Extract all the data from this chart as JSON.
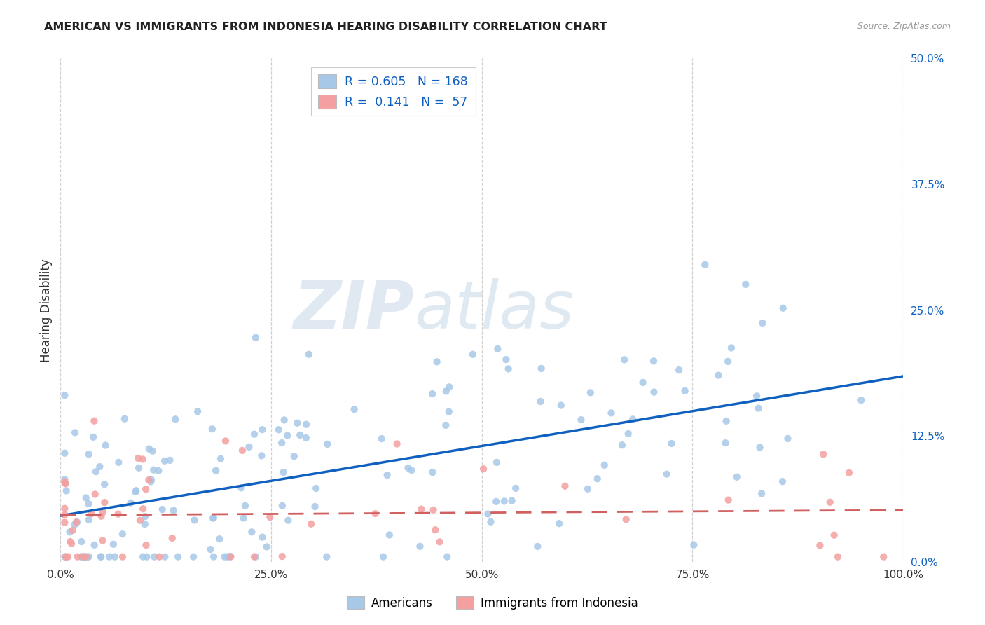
{
  "title": "AMERICAN VS IMMIGRANTS FROM INDONESIA HEARING DISABILITY CORRELATION CHART",
  "source": "Source: ZipAtlas.com",
  "xlabel_tick_vals": [
    0.0,
    0.25,
    0.5,
    0.75,
    1.0
  ],
  "xlabel_tick_labels": [
    "0.0%",
    "25.0%",
    "50.0%",
    "75.0%",
    "100.0%"
  ],
  "ylabel": "Hearing Disability",
  "ylabel_tick_vals": [
    0.0,
    0.125,
    0.25,
    0.375,
    0.5
  ],
  "ylabel_tick_labels": [
    "0.0%",
    "12.5%",
    "25.0%",
    "37.5%",
    "50.0%"
  ],
  "xlim": [
    0.0,
    1.0
  ],
  "ylim": [
    0.0,
    0.5
  ],
  "americans_color": "#a8c8e8",
  "immigrants_color": "#f4a0a0",
  "trendline_americans_color": "#1060c0",
  "trendline_immigrants_color": "#d06060",
  "R_americans": 0.605,
  "N_americans": 168,
  "R_immigrants": 0.141,
  "N_immigrants": 57,
  "legend_label_americans": "Americans",
  "legend_label_immigrants": "Immigrants from Indonesia",
  "watermark_zip": "ZIP",
  "watermark_atlas": "atlas",
  "background_color": "#ffffff",
  "grid_color": "#d0d0d0",
  "legend_text_color": "#1060c0"
}
